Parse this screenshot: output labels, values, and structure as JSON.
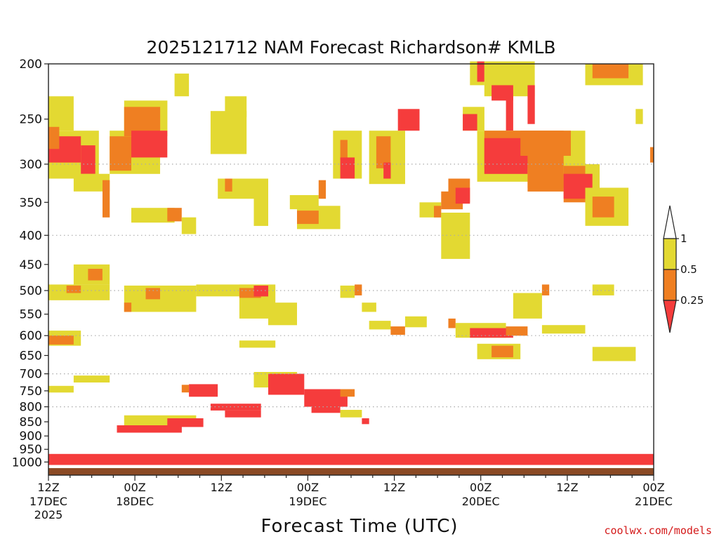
{
  "chart_data": {
    "type": "heatmap",
    "title": "2025121712 NAM Forecast Richardson# KMLB",
    "xlabel": "Forecast Time (UTC)",
    "ylabel": "",
    "x_range_hours": [
      0,
      84
    ],
    "y_levels": [
      200,
      250,
      300,
      350,
      400,
      450,
      500,
      550,
      600,
      650,
      700,
      750,
      800,
      850,
      900,
      950,
      1000
    ],
    "y_tick_labels": [
      "200",
      "250",
      "300",
      "350",
      "400",
      "450",
      "500",
      "550",
      "600",
      "650",
      "700",
      "750",
      "800",
      "850",
      "900",
      "950",
      "1000"
    ],
    "dotted_grid_levels": [
      300,
      400,
      500,
      600,
      700,
      800
    ],
    "x_ticks": [
      {
        "hour": 0,
        "time": "12Z",
        "date": "17DEC",
        "year": "2025"
      },
      {
        "hour": 12,
        "time": "00Z",
        "date": "18DEC",
        "year": ""
      },
      {
        "hour": 24,
        "time": "12Z",
        "date": "",
        "year": ""
      },
      {
        "hour": 36,
        "time": "00Z",
        "date": "19DEC",
        "year": ""
      },
      {
        "hour": 48,
        "time": "12Z",
        "date": "",
        "year": ""
      },
      {
        "hour": 60,
        "time": "00Z",
        "date": "20DEC",
        "year": ""
      },
      {
        "hour": 72,
        "time": "12Z",
        "date": "",
        "year": ""
      },
      {
        "hour": 84,
        "time": "00Z",
        "date": "21DEC",
        "year": ""
      }
    ],
    "legend": {
      "levels": [
        "1",
        "0.5",
        "0.25"
      ],
      "bins": [
        {
          "range": "> 1",
          "color": "#ffffff"
        },
        {
          "range": "0.5-1",
          "color": "#e3d932"
        },
        {
          "range": "0.25-0.5",
          "color": "#ef7f22"
        },
        {
          "range": "< 0.25",
          "color": "#f53c3c"
        }
      ]
    },
    "colors": {
      "ri_0.5_1": "#e3d932",
      "ri_0.25_0.5": "#ef7f22",
      "ri_lt_0.25": "#f53c3c",
      "ground": "#8b4a25"
    },
    "regions": [
      {
        "cls": "Y",
        "h": [
          0,
          3.5
        ],
        "p": [
          228,
          262
        ]
      },
      {
        "cls": "Y",
        "h": [
          0,
          7
        ],
        "p": [
          262,
          318
        ]
      },
      {
        "cls": "R",
        "h": [
          0,
          4.5
        ],
        "p": [
          268,
          298
        ]
      },
      {
        "cls": "R",
        "h": [
          4.5,
          6.5
        ],
        "p": [
          278,
          312
        ]
      },
      {
        "cls": "O",
        "h": [
          0,
          1.5
        ],
        "p": [
          258,
          282
        ]
      },
      {
        "cls": "Y",
        "h": [
          3.5,
          8.5
        ],
        "p": [
          312,
          335
        ]
      },
      {
        "cls": "O",
        "h": [
          7.5,
          8.5
        ],
        "p": [
          320,
          372
        ]
      },
      {
        "cls": "Y",
        "h": [
          8.5,
          15.5
        ],
        "p": [
          262,
          312
        ]
      },
      {
        "cls": "O",
        "h": [
          8.5,
          11.5
        ],
        "p": [
          268,
          308
        ]
      },
      {
        "cls": "Y",
        "h": [
          10.5,
          16.5
        ],
        "p": [
          232,
          268
        ]
      },
      {
        "cls": "O",
        "h": [
          10.5,
          15.5
        ],
        "p": [
          238,
          268
        ]
      },
      {
        "cls": "R",
        "h": [
          11.5,
          16.5
        ],
        "p": [
          262,
          292
        ]
      },
      {
        "cls": "Y",
        "h": [
          17.5,
          19.5
        ],
        "p": [
          208,
          228
        ]
      },
      {
        "cls": "Y",
        "h": [
          11.5,
          17.5
        ],
        "p": [
          358,
          380
        ]
      },
      {
        "cls": "O",
        "h": [
          16.5,
          18.5
        ],
        "p": [
          358,
          378
        ]
      },
      {
        "cls": "Y",
        "h": [
          18.5,
          20.5
        ],
        "p": [
          372,
          398
        ]
      },
      {
        "cls": "Y",
        "h": [
          22.5,
          27.5
        ],
        "p": [
          242,
          288
        ]
      },
      {
        "cls": "Y",
        "h": [
          24.5,
          27.5
        ],
        "p": [
          228,
          248
        ]
      },
      {
        "cls": "Y",
        "h": [
          23.5,
          28.5
        ],
        "p": [
          318,
          345
        ]
      },
      {
        "cls": "O",
        "h": [
          24.5,
          25.5
        ],
        "p": [
          318,
          335
        ]
      },
      {
        "cls": "Y",
        "h": [
          28.5,
          30.5
        ],
        "p": [
          318,
          385
        ]
      },
      {
        "cls": "Y",
        "h": [
          33.5,
          37.5
        ],
        "p": [
          340,
          360
        ]
      },
      {
        "cls": "Y",
        "h": [
          34.5,
          40.5
        ],
        "p": [
          355,
          390
        ]
      },
      {
        "cls": "O",
        "h": [
          34.5,
          37.5
        ],
        "p": [
          362,
          382
        ]
      },
      {
        "cls": "O",
        "h": [
          37.5,
          38.5
        ],
        "p": [
          320,
          345
        ]
      },
      {
        "cls": "Y",
        "h": [
          39.5,
          43.5
        ],
        "p": [
          262,
          318
        ]
      },
      {
        "cls": "O",
        "h": [
          40.5,
          41.5
        ],
        "p": [
          272,
          295
        ]
      },
      {
        "cls": "R",
        "h": [
          40.5,
          42.5
        ],
        "p": [
          292,
          318
        ]
      },
      {
        "cls": "Y",
        "h": [
          44.5,
          49.5
        ],
        "p": [
          262,
          325
        ]
      },
      {
        "cls": "O",
        "h": [
          45.5,
          47.5
        ],
        "p": [
          268,
          305
        ]
      },
      {
        "cls": "R",
        "h": [
          46.5,
          47.5
        ],
        "p": [
          298,
          318
        ]
      },
      {
        "cls": "R",
        "h": [
          48.5,
          51.5
        ],
        "p": [
          240,
          262
        ]
      },
      {
        "cls": "Y",
        "h": [
          51.5,
          54.5
        ],
        "p": [
          350,
          372
        ]
      },
      {
        "cls": "O",
        "h": [
          53.5,
          54.5
        ],
        "p": [
          355,
          372
        ]
      },
      {
        "cls": "Y",
        "h": [
          54.5,
          58.5
        ],
        "p": [
          365,
          440
        ]
      },
      {
        "cls": "O",
        "h": [
          54.5,
          57.5
        ],
        "p": [
          335,
          360
        ]
      },
      {
        "cls": "O",
        "h": [
          55.5,
          58.5
        ],
        "p": [
          318,
          350
        ]
      },
      {
        "cls": "R",
        "h": [
          56.5,
          58.5
        ],
        "p": [
          330,
          352
        ]
      },
      {
        "cls": "Y",
        "h": [
          58.5,
          60.5
        ],
        "p": [
          198,
          218
        ]
      },
      {
        "cls": "R",
        "h": [
          59.5,
          60.5
        ],
        "p": [
          198,
          215
        ]
      },
      {
        "cls": "Y",
        "h": [
          60.5,
          67.5
        ],
        "p": [
          198,
          228
        ]
      },
      {
        "cls": "R",
        "h": [
          61.5,
          64.5
        ],
        "p": [
          218,
          232
        ]
      },
      {
        "cls": "R",
        "h": [
          63.5,
          64.5
        ],
        "p": [
          228,
          262
        ]
      },
      {
        "cls": "Y",
        "h": [
          57.5,
          60.5
        ],
        "p": [
          238,
          262
        ]
      },
      {
        "cls": "R",
        "h": [
          57.5,
          59.5
        ],
        "p": [
          245,
          262
        ]
      },
      {
        "cls": "Y",
        "h": [
          59.5,
          74.5
        ],
        "p": [
          262,
          322
        ]
      },
      {
        "cls": "O",
        "h": [
          60.5,
          71.5
        ],
        "p": [
          262,
          305
        ]
      },
      {
        "cls": "R",
        "h": [
          60.5,
          66.5
        ],
        "p": [
          270,
          312
        ]
      },
      {
        "cls": "O",
        "h": [
          65.5,
          72.5
        ],
        "p": [
          262,
          290
        ]
      },
      {
        "cls": "R",
        "h": [
          66.5,
          67.5
        ],
        "p": [
          218,
          255
        ]
      },
      {
        "cls": "Y",
        "h": [
          66.5,
          76.5
        ],
        "p": [
          300,
          330
        ]
      },
      {
        "cls": "O",
        "h": [
          66.5,
          71.5
        ],
        "p": [
          298,
          335
        ]
      },
      {
        "cls": "O",
        "h": [
          71.5,
          74.5
        ],
        "p": [
          302,
          350
        ]
      },
      {
        "cls": "R",
        "h": [
          71.5,
          75.5
        ],
        "p": [
          312,
          345
        ]
      },
      {
        "cls": "Y",
        "h": [
          74.5,
          80.5
        ],
        "p": [
          330,
          385
        ]
      },
      {
        "cls": "O",
        "h": [
          75.5,
          78.5
        ],
        "p": [
          342,
          372
        ]
      },
      {
        "cls": "Y",
        "h": [
          74.5,
          82.5
        ],
        "p": [
          200,
          218
        ]
      },
      {
        "cls": "O",
        "h": [
          75.5,
          80.5
        ],
        "p": [
          200,
          212
        ]
      },
      {
        "cls": "Y",
        "h": [
          81.5,
          82.5
        ],
        "p": [
          240,
          255
        ]
      },
      {
        "cls": "O",
        "h": [
          83.5,
          84
        ],
        "p": [
          280,
          298
        ]
      },
      {
        "cls": "Y",
        "h": [
          0,
          8.5
        ],
        "p": [
          488,
          520
        ]
      },
      {
        "cls": "O",
        "h": [
          2.5,
          4.5
        ],
        "p": [
          490,
          505
        ]
      },
      {
        "cls": "Y",
        "h": [
          3.5,
          8.5
        ],
        "p": [
          450,
          488
        ]
      },
      {
        "cls": "O",
        "h": [
          5.5,
          7.5
        ],
        "p": [
          458,
          480
        ]
      },
      {
        "cls": "Y",
        "h": [
          10.5,
          20.5
        ],
        "p": [
          490,
          545
        ]
      },
      {
        "cls": "O",
        "h": [
          13.5,
          15.5
        ],
        "p": [
          495,
          518
        ]
      },
      {
        "cls": "O",
        "h": [
          10.5,
          11.5
        ],
        "p": [
          525,
          545
        ]
      },
      {
        "cls": "Y",
        "h": [
          20.5,
          28.5
        ],
        "p": [
          488,
          512
        ]
      },
      {
        "cls": "Y",
        "h": [
          26.5,
          31.5
        ],
        "p": [
          488,
          560
        ]
      },
      {
        "cls": "O",
        "h": [
          26.5,
          29.5
        ],
        "p": [
          495,
          515
        ]
      },
      {
        "cls": "R",
        "h": [
          28.5,
          30.5
        ],
        "p": [
          490,
          512
        ]
      },
      {
        "cls": "Y",
        "h": [
          30.5,
          34.5
        ],
        "p": [
          525,
          575
        ]
      },
      {
        "cls": "Y",
        "h": [
          40.5,
          42.5
        ],
        "p": [
          490,
          515
        ]
      },
      {
        "cls": "O",
        "h": [
          42.5,
          43.5
        ],
        "p": [
          488,
          510
        ]
      },
      {
        "cls": "Y",
        "h": [
          43.5,
          45.5
        ],
        "p": [
          525,
          545
        ]
      },
      {
        "cls": "Y",
        "h": [
          44.5,
          47.5
        ],
        "p": [
          565,
          585
        ]
      },
      {
        "cls": "O",
        "h": [
          47.5,
          49.5
        ],
        "p": [
          578,
          598
        ]
      },
      {
        "cls": "Y",
        "h": [
          49.5,
          52.5
        ],
        "p": [
          555,
          580
        ]
      },
      {
        "cls": "O",
        "h": [
          55.5,
          56.5
        ],
        "p": [
          560,
          582
        ]
      },
      {
        "cls": "Y",
        "h": [
          56.5,
          63.5
        ],
        "p": [
          570,
          605
        ]
      },
      {
        "cls": "R",
        "h": [
          58.5,
          64.5
        ],
        "p": [
          582,
          605
        ]
      },
      {
        "cls": "O",
        "h": [
          63.5,
          66.5
        ],
        "p": [
          578,
          600
        ]
      },
      {
        "cls": "Y",
        "h": [
          64.5,
          68.5
        ],
        "p": [
          505,
          560
        ]
      },
      {
        "cls": "O",
        "h": [
          68.5,
          69.5
        ],
        "p": [
          488,
          510
        ]
      },
      {
        "cls": "Y",
        "h": [
          68.5,
          74.5
        ],
        "p": [
          575,
          595
        ]
      },
      {
        "cls": "Y",
        "h": [
          75.5,
          78.5
        ],
        "p": [
          488,
          510
        ]
      },
      {
        "cls": "Y",
        "h": [
          0,
          4.5
        ],
        "p": [
          588,
          625
        ]
      },
      {
        "cls": "O",
        "h": [
          0,
          3.5
        ],
        "p": [
          600,
          622
        ]
      },
      {
        "cls": "Y",
        "h": [
          26.5,
          31.5
        ],
        "p": [
          612,
          630
        ]
      },
      {
        "cls": "Y",
        "h": [
          59.5,
          65.5
        ],
        "p": [
          620,
          660
        ]
      },
      {
        "cls": "O",
        "h": [
          61.5,
          64.5
        ],
        "p": [
          625,
          655
        ]
      },
      {
        "cls": "O",
        "h": [
          76.5,
          80.5
        ],
        "p": [
          640,
          662
        ]
      },
      {
        "cls": "Y",
        "h": [
          75.5,
          81.5
        ],
        "p": [
          628,
          665
        ]
      },
      {
        "cls": "Y",
        "h": [
          3.5,
          8.5
        ],
        "p": [
          705,
          725
        ]
      },
      {
        "cls": "Y",
        "h": [
          0,
          3.5
        ],
        "p": [
          735,
          755
        ]
      },
      {
        "cls": "R",
        "h": [
          19.5,
          23.5
        ],
        "p": [
          730,
          768
        ]
      },
      {
        "cls": "O",
        "h": [
          18.5,
          19.5
        ],
        "p": [
          732,
          755
        ]
      },
      {
        "cls": "Y",
        "h": [
          28.5,
          34.5
        ],
        "p": [
          695,
          740
        ]
      },
      {
        "cls": "R",
        "h": [
          30.5,
          35.5
        ],
        "p": [
          700,
          762
        ]
      },
      {
        "cls": "R",
        "h": [
          35.5,
          41.5
        ],
        "p": [
          745,
          800
        ]
      },
      {
        "cls": "R",
        "h": [
          36.5,
          40.5
        ],
        "p": [
          780,
          820
        ]
      },
      {
        "cls": "O",
        "h": [
          40.5,
          42.5
        ],
        "p": [
          745,
          768
        ]
      },
      {
        "cls": "R",
        "h": [
          22.5,
          29.5
        ],
        "p": [
          790,
          812
        ]
      },
      {
        "cls": "R",
        "h": [
          24.5,
          29.5
        ],
        "p": [
          812,
          835
        ]
      },
      {
        "cls": "Y",
        "h": [
          10.5,
          20.5
        ],
        "p": [
          828,
          862
        ]
      },
      {
        "cls": "R",
        "h": [
          16.5,
          21.5
        ],
        "p": [
          838,
          868
        ]
      },
      {
        "cls": "R",
        "h": [
          9.5,
          18.5
        ],
        "p": [
          862,
          888
        ]
      },
      {
        "cls": "Y",
        "h": [
          40.5,
          43.5
        ],
        "p": [
          810,
          835
        ]
      },
      {
        "cls": "R",
        "h": [
          43.5,
          44.5
        ],
        "p": [
          838,
          858
        ]
      },
      {
        "cls": "R",
        "h": [
          0,
          84
        ],
        "p": [
          968,
          1012
        ]
      }
    ]
  },
  "credit": "coolwx.com/models"
}
